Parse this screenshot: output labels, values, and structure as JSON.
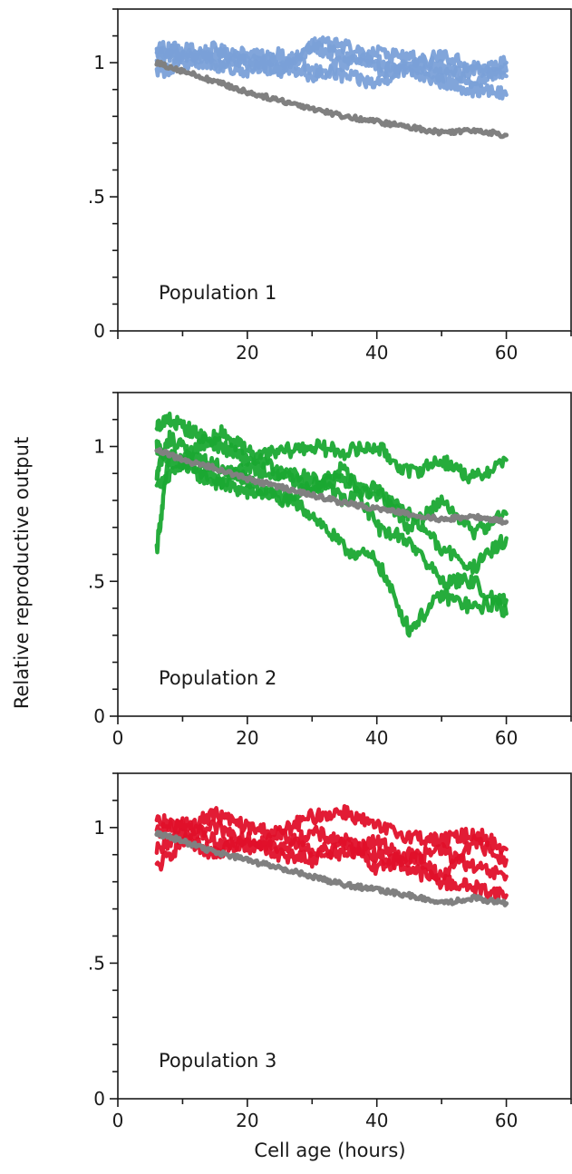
{
  "ylabel": "Relative reproductive output",
  "xlabel": "Cell age (hours)",
  "chart_data": [
    {
      "type": "line",
      "label": "Population 1",
      "xlim": [
        0,
        70
      ],
      "ylim": [
        0,
        1.2
      ],
      "xticks": [
        20,
        40,
        60
      ],
      "xtick_labels": [
        "20",
        "40",
        "60"
      ],
      "show_x0_label": false,
      "yticks": [
        0,
        0.5,
        1
      ],
      "ytick_labels": [
        "0",
        ".5",
        "1"
      ],
      "grid": false,
      "reference": {
        "color": "#808080",
        "x": [
          6,
          10,
          15,
          20,
          25,
          30,
          35,
          40,
          45,
          50,
          55,
          60
        ],
        "y": [
          1.0,
          0.97,
          0.93,
          0.89,
          0.86,
          0.83,
          0.8,
          0.78,
          0.76,
          0.74,
          0.75,
          0.73
        ]
      },
      "series_color": "#7aa0d8",
      "series": [
        {
          "x": [
            6,
            10,
            15,
            20,
            25,
            30,
            35,
            40,
            45,
            50,
            55,
            60
          ],
          "y": [
            1.04,
            1.02,
            1.05,
            1.0,
            0.98,
            1.06,
            1.02,
            0.98,
            0.96,
            0.93,
            0.9,
            0.88
          ]
        },
        {
          "x": [
            6,
            10,
            15,
            20,
            25,
            30,
            35,
            40,
            45,
            50,
            55,
            60
          ],
          "y": [
            1.02,
            1.06,
            1.0,
            0.97,
            1.03,
            0.97,
            0.95,
            0.92,
            1.0,
            0.95,
            0.97,
            1.0
          ]
        },
        {
          "x": [
            6,
            10,
            15,
            20,
            25,
            30,
            35,
            40,
            45,
            50,
            55,
            60
          ],
          "y": [
            0.96,
            1.0,
            1.03,
            1.02,
            0.96,
            1.07,
            1.06,
            1.0,
            0.97,
            1.03,
            0.98,
            0.95
          ]
        },
        {
          "x": [
            6,
            10,
            15,
            20,
            25,
            30,
            35,
            40,
            45,
            50,
            55,
            60
          ],
          "y": [
            1.06,
            1.03,
            0.98,
            1.04,
            1.0,
            0.95,
            1.0,
            1.04,
            1.02,
            0.98,
            0.93,
            0.97
          ]
        }
      ]
    },
    {
      "type": "line",
      "label": "Population 2",
      "xlim": [
        0,
        70
      ],
      "ylim": [
        0,
        1.2
      ],
      "xticks": [
        0,
        20,
        40,
        60
      ],
      "xtick_labels": [
        "0",
        "20",
        "40",
        "60"
      ],
      "show_x0_label": true,
      "yticks": [
        0,
        0.5,
        1
      ],
      "ytick_labels": [
        "0",
        ".5",
        "1"
      ],
      "grid": false,
      "reference": {
        "color": "#808080",
        "x": [
          6,
          10,
          15,
          20,
          25,
          30,
          35,
          40,
          45,
          50,
          55,
          60
        ],
        "y": [
          0.99,
          0.95,
          0.92,
          0.88,
          0.85,
          0.82,
          0.79,
          0.77,
          0.75,
          0.73,
          0.74,
          0.72
        ]
      },
      "series_color": "#1aa832",
      "series": [
        {
          "x": [
            6,
            8,
            12,
            16,
            20,
            25,
            30,
            35,
            40,
            45,
            50,
            55,
            60
          ],
          "y": [
            0.62,
            0.98,
            0.9,
            0.86,
            0.83,
            0.82,
            0.75,
            0.62,
            0.58,
            0.32,
            0.45,
            0.4,
            0.43
          ]
        },
        {
          "x": [
            6,
            8,
            12,
            16,
            20,
            25,
            30,
            35,
            40,
            45,
            50,
            55,
            60
          ],
          "y": [
            1.08,
            1.1,
            1.05,
            1.0,
            0.95,
            0.98,
            1.0,
            0.98,
            1.0,
            0.9,
            0.95,
            0.88,
            0.95
          ]
        },
        {
          "x": [
            6,
            8,
            12,
            16,
            20,
            25,
            30,
            35,
            40,
            45,
            50,
            55,
            60
          ],
          "y": [
            0.9,
            1.03,
            0.96,
            0.92,
            0.88,
            0.8,
            0.85,
            0.92,
            0.7,
            0.65,
            0.5,
            0.5,
            0.38
          ]
        },
        {
          "x": [
            6,
            8,
            12,
            16,
            20,
            25,
            30,
            35,
            40,
            45,
            50,
            55,
            60
          ],
          "y": [
            1.0,
            0.95,
            0.92,
            0.86,
            0.92,
            0.9,
            0.85,
            0.88,
            0.82,
            0.75,
            0.62,
            0.55,
            0.66
          ]
        },
        {
          "x": [
            6,
            8,
            12,
            16,
            20,
            25,
            30,
            35,
            40,
            45,
            50,
            55,
            60
          ],
          "y": [
            0.85,
            0.88,
            1.0,
            1.05,
            0.98,
            0.9,
            0.88,
            0.8,
            0.85,
            0.7,
            0.8,
            0.68,
            0.75
          ]
        }
      ]
    },
    {
      "type": "line",
      "label": "Population 3",
      "xlim": [
        0,
        70
      ],
      "ylim": [
        0,
        1.2
      ],
      "xticks": [
        0,
        20,
        40,
        60
      ],
      "xtick_labels": [
        "0",
        "20",
        "40",
        "60"
      ],
      "show_x0_label": true,
      "yticks": [
        0,
        0.5,
        1
      ],
      "ytick_labels": [
        "0",
        ".5",
        "1"
      ],
      "grid": false,
      "reference": {
        "color": "#808080",
        "x": [
          6,
          10,
          15,
          20,
          25,
          30,
          35,
          40,
          45,
          50,
          55,
          60
        ],
        "y": [
          0.98,
          0.95,
          0.91,
          0.88,
          0.85,
          0.82,
          0.79,
          0.77,
          0.75,
          0.72,
          0.74,
          0.72
        ]
      },
      "series_color": "#e0102a",
      "series": [
        {
          "x": [
            6,
            10,
            15,
            20,
            25,
            30,
            35,
            40,
            45,
            50,
            55,
            60
          ],
          "y": [
            0.85,
            0.95,
            1.0,
            0.96,
            0.92,
            0.98,
            0.95,
            0.9,
            0.85,
            0.8,
            0.78,
            0.75
          ]
        },
        {
          "x": [
            6,
            10,
            15,
            20,
            25,
            30,
            35,
            40,
            45,
            50,
            55,
            60
          ],
          "y": [
            1.03,
            1.0,
            1.05,
            1.0,
            0.98,
            1.04,
            1.06,
            1.0,
            0.97,
            0.95,
            0.98,
            0.92
          ]
        },
        {
          "x": [
            6,
            10,
            15,
            20,
            25,
            30,
            35,
            40,
            45,
            50,
            55,
            60
          ],
          "y": [
            0.98,
            1.02,
            0.95,
            0.92,
            0.97,
            0.92,
            0.9,
            0.95,
            0.88,
            0.92,
            0.85,
            0.82
          ]
        },
        {
          "x": [
            6,
            10,
            15,
            20,
            25,
            30,
            35,
            40,
            45,
            50,
            55,
            60
          ],
          "y": [
            0.92,
            0.97,
            0.9,
            0.96,
            0.9,
            0.88,
            0.94,
            0.85,
            0.9,
            0.82,
            0.95,
            0.88
          ]
        }
      ]
    }
  ]
}
